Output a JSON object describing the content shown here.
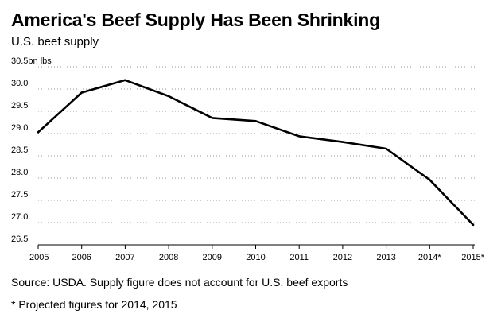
{
  "header": {
    "title": "America's Beef Supply Has Been Shrinking",
    "subtitle": "U.S. beef supply"
  },
  "footer": {
    "source": "Source: USDA. Supply figure does not account for U.S. beef exports",
    "footnote": "* Projected figures for 2014, 2015"
  },
  "chart_data": {
    "type": "line",
    "title": "America's Beef Supply Has Been Shrinking",
    "subtitle": "U.S. beef supply",
    "xlabel": "",
    "ylabel": "bn lbs",
    "categories": [
      "2005",
      "2006",
      "2007",
      "2008",
      "2009",
      "2010",
      "2011",
      "2012",
      "2013",
      "2014*",
      "2015*"
    ],
    "series": [
      {
        "name": "U.S. beef supply",
        "values": [
          29.03,
          29.92,
          30.2,
          29.84,
          29.35,
          29.28,
          28.94,
          28.81,
          28.66,
          27.96,
          26.95
        ]
      }
    ],
    "ylim": [
      26.5,
      30.5
    ],
    "yticks": [
      26.5,
      27.0,
      27.5,
      28.0,
      28.5,
      29.0,
      29.5,
      30.0,
      30.5
    ],
    "ytick_labels": [
      "26.5",
      "27.0",
      "27.5",
      "28.0",
      "28.5",
      "29.0",
      "29.5",
      "30.0",
      "30.5bn lbs"
    ],
    "grid": "horizontal dotted",
    "color": "#000000"
  }
}
